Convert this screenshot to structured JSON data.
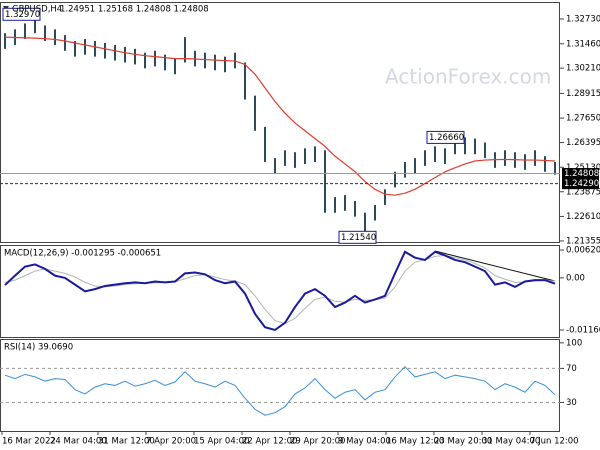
{
  "watermark": "ActionForex.com",
  "time_axis": [
    "16 Mar 2022",
    "24 Mar 04:00",
    "31 Mar 12:00",
    "7 Apr 20:00",
    "15 Apr 04:00",
    "22 Apr 12:00",
    "29 Apr 20:00",
    "9 May 04:00",
    "16 May 12:00",
    "23 May 20:00",
    "31 May 04:00",
    "7 Jun 12:00"
  ],
  "chart_data": [
    {
      "type": "ohlc",
      "title": "GBPUSD,H4",
      "subtitle": "1.24951 1.25168 1.24808 1.24808",
      "color": "#2b4a5a",
      "high": [
        1.32,
        1.322,
        1.325,
        1.3297,
        1.324,
        1.322,
        1.319,
        1.316,
        1.317,
        1.316,
        1.315,
        1.314,
        1.313,
        1.312,
        1.31,
        1.311,
        1.309,
        1.307,
        1.318,
        1.311,
        1.31,
        1.309,
        1.308,
        1.31,
        1.305,
        1.288,
        1.272,
        1.256,
        1.26,
        1.259,
        1.261,
        1.262,
        1.26,
        1.236,
        1.237,
        1.234,
        1.228,
        1.232,
        1.24,
        1.249,
        1.254,
        1.256,
        1.26,
        1.262,
        1.261,
        1.266,
        1.2666,
        1.266,
        1.264,
        1.259,
        1.26,
        1.259,
        1.258,
        1.26,
        1.257,
        1.254
      ],
      "low": [
        1.312,
        1.314,
        1.317,
        1.32,
        1.316,
        1.314,
        1.311,
        1.308,
        1.309,
        1.308,
        1.307,
        1.306,
        1.305,
        1.304,
        1.302,
        1.303,
        1.301,
        1.299,
        1.305,
        1.303,
        1.302,
        1.301,
        1.3,
        1.302,
        1.286,
        1.27,
        1.254,
        1.248,
        1.252,
        1.251,
        1.253,
        1.254,
        1.228,
        1.228,
        1.229,
        1.226,
        1.2154,
        1.224,
        1.232,
        1.241,
        1.246,
        1.248,
        1.252,
        1.254,
        1.253,
        1.258,
        1.258,
        1.258,
        1.256,
        1.251,
        1.252,
        1.251,
        1.25,
        1.252,
        1.249,
        1.2475
      ],
      "ma": {
        "color": "#e03c31",
        "values": [
          1.318,
          1.3178,
          1.3176,
          1.3175,
          1.3172,
          1.3168,
          1.316,
          1.315,
          1.314,
          1.313,
          1.312,
          1.311,
          1.31,
          1.3092,
          1.3085,
          1.308,
          1.3075,
          1.307,
          1.307,
          1.3068,
          1.3065,
          1.3062,
          1.306,
          1.3058,
          1.304,
          1.299,
          1.292,
          1.285,
          1.279,
          1.274,
          1.27,
          1.266,
          1.262,
          1.257,
          1.253,
          1.249,
          1.244,
          1.24,
          1.2375,
          1.237,
          1.238,
          1.24,
          1.243,
          1.246,
          1.249,
          1.251,
          1.253,
          1.2545,
          1.255,
          1.2552,
          1.2553,
          1.2552,
          1.255,
          1.255,
          1.2548,
          1.2545
        ]
      },
      "ylim": [
        1.213,
        1.336
      ],
      "yticks": [
        1.21355,
        {
          "value": 1.2261,
          "label": "1.22610"
        },
        1.23875,
        {
          "value": 1.2513,
          "label": "1.25130"
        },
        1.26395,
        {
          "value": 1.2765,
          "label": "1.27650"
        },
        1.28915,
        {
          "value": 1.3021,
          "label": "1.30210"
        },
        {
          "value": 1.3146,
          "label": "1.31460"
        },
        {
          "value": 1.3273,
          "label": "1.32730"
        }
      ],
      "price_lines": [
        {
          "value": 1.24808,
          "label": "1.24808",
          "style": "solid"
        },
        {
          "value": 1.2429,
          "label": "1.24290",
          "style": "dashed"
        }
      ],
      "annotations": [
        {
          "value": 1.3297,
          "label": "1.32970"
        },
        {
          "value": 1.2666,
          "label": "1.26660"
        },
        {
          "value": 1.2154,
          "label": "1.21540"
        }
      ]
    },
    {
      "type": "macd",
      "title": "MACD(12,26,9) -0.001295 -0.000651",
      "series": [
        {
          "color": "#1a1a9c",
          "values": [
            -0.0016,
            0.0005,
            0.0025,
            0.003,
            0.002,
            0.0005,
            0,
            -0.0015,
            -0.003,
            -0.0025,
            -0.0018,
            -0.0015,
            -0.0012,
            -0.001,
            -0.0012,
            -0.0008,
            -0.001,
            -0.0008,
            0.001,
            0.0012,
            0.0008,
            -0.0005,
            -0.0012,
            -0.0008,
            -0.0035,
            -0.008,
            -0.011,
            -0.0116,
            -0.01,
            -0.0065,
            -0.0035,
            -0.0025,
            -0.004,
            -0.0065,
            -0.0055,
            -0.004,
            -0.0055,
            -0.0048,
            -0.004,
            0.001,
            0.0058,
            0.0045,
            0.004,
            0.0058,
            0.005,
            0.004,
            0.0035,
            0.0025,
            0.0015,
            -0.0015,
            -0.001,
            -0.002,
            -0.0008,
            -0.0005,
            -0.0005,
            -0.0013
          ]
        },
        {
          "color": "#b4b4b4",
          "values": [
            -0.001,
            -0.0005,
            0.0005,
            0.0015,
            0.002,
            0.0015,
            0.001,
            0.0002,
            -0.001,
            -0.0018,
            -0.002,
            -0.0018,
            -0.0015,
            -0.0013,
            -0.0012,
            -0.0011,
            -0.001,
            -0.0009,
            -0.0002,
            0.0005,
            0.0007,
            0.0002,
            -0.0004,
            -0.0007,
            -0.0015,
            -0.004,
            -0.007,
            -0.0095,
            -0.0102,
            -0.009,
            -0.0068,
            -0.0048,
            -0.0043,
            -0.0052,
            -0.0054,
            -0.0048,
            -0.005,
            -0.0049,
            -0.0045,
            -0.002,
            0.0015,
            0.0035,
            0.004,
            0.0048,
            0.005,
            0.0045,
            0.004,
            0.0032,
            0.0022,
            0.0005,
            -0.0003,
            -0.001,
            -0.0009,
            -0.0007,
            -0.0006,
            -0.0007
          ]
        }
      ],
      "ylim": [
        -0.013166,
        0.007322
      ],
      "yticks": [
        -0.011607,
        {
          "value": 0,
          "label": "0.00"
        },
        0.006208
      ]
    },
    {
      "type": "rsi",
      "title": "RSI(14) 39.0690",
      "color": "#3a8fd8",
      "values": [
        62,
        58,
        63,
        60,
        55,
        58,
        57,
        45,
        40,
        48,
        52,
        50,
        55,
        49,
        52,
        56,
        50,
        54,
        66,
        55,
        52,
        48,
        55,
        50,
        35,
        22,
        15,
        18,
        25,
        40,
        47,
        58,
        45,
        35,
        42,
        45,
        33,
        42,
        45,
        60,
        72,
        60,
        63,
        66,
        58,
        62,
        60,
        58,
        55,
        45,
        52,
        48,
        42,
        55,
        50,
        39
      ],
      "ylim": [
        -3.5,
        104.5
      ],
      "yticks": [
        30,
        70,
        100
      ],
      "levels": [
        30,
        70
      ]
    }
  ]
}
